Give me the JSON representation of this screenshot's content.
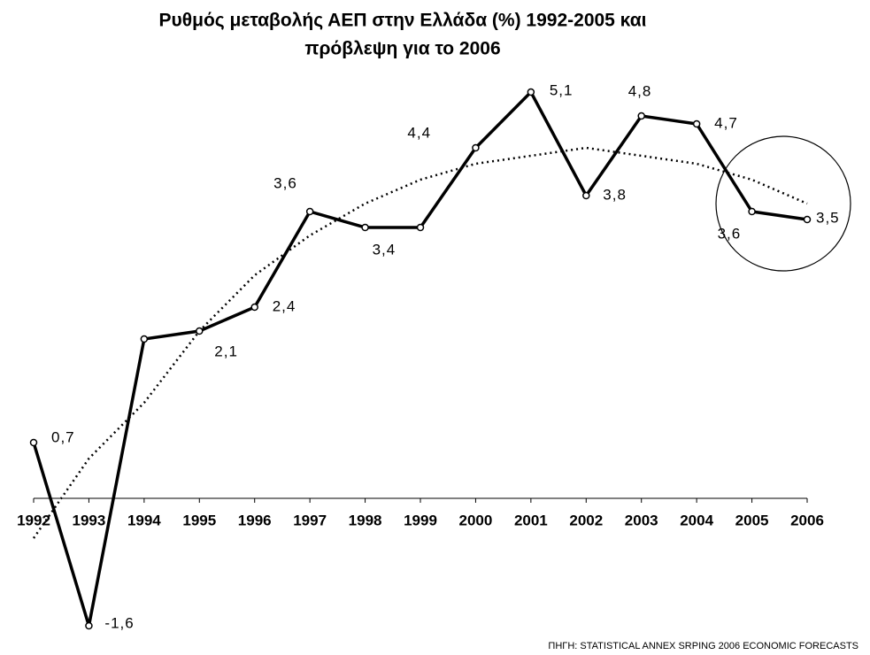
{
  "chart_data": {
    "type": "line",
    "title": [
      "Ρυθμός μεταβολής ΑΕΠ στην Ελλάδα (%) 1992-2005 και",
      "πρόβλεψη για το 2006"
    ],
    "categories": [
      "1992",
      "1993",
      "1994",
      "1995",
      "1996",
      "1997",
      "1998",
      "1999",
      "2000",
      "2001",
      "2002",
      "2003",
      "2004",
      "2005",
      "2006"
    ],
    "series": [
      {
        "color": "#000000",
        "values": [
          0.7,
          -1.6,
          2.0,
          2.1,
          2.4,
          3.6,
          3.4,
          3.4,
          4.4,
          5.1,
          3.8,
          4.8,
          4.7,
          3.6,
          3.5
        ],
        "value_labels": [
          "0,7",
          "-1,6",
          null,
          "2,1",
          "2,4",
          "3,6",
          "3,4",
          null,
          "4,4",
          "5,1",
          "3,8",
          "4,8",
          "4,7",
          "3,6",
          "3,5"
        ]
      },
      {
        "color": "#000000",
        "dashed": true,
        "values": [
          -0.5,
          0.5,
          1.2,
          2.1,
          2.8,
          3.3,
          3.7,
          4.0,
          4.2,
          4.3,
          4.4,
          4.3,
          4.2,
          4.0,
          3.7
        ]
      }
    ],
    "ylim": [
      -1.8,
      5.6
    ],
    "source": "ΠΗΓΗ: STATISTICAL ANNEX SRPING 2006 ECONOMIC FORECASTS"
  }
}
